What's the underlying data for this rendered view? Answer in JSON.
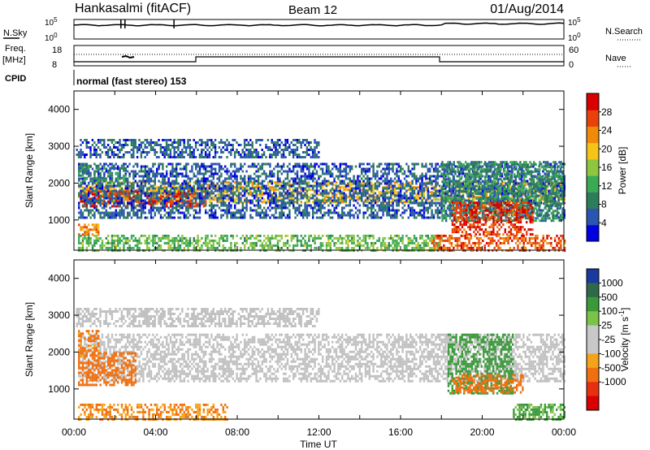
{
  "header": {
    "site": "Hankasalmi (fitACF)",
    "beam": "Beam 12",
    "date": "01/Aug/2014"
  },
  "status_panels": {
    "nsky_label": "N.Sky",
    "nsky_ticks": [
      "10^5",
      "10^0"
    ],
    "nsearch_label": "N.Search",
    "nsearch_ticks": [
      "10^5",
      "10^0"
    ],
    "freq_label": "Freq.",
    "freq_unit": "[MHz]",
    "freq_ticks": [
      18,
      8
    ],
    "nave_label": "Nave",
    "nave_ticks": [
      60,
      0
    ],
    "cpid_label": "CPID",
    "cpid_text": "normal (fast stereo) 153"
  },
  "colors": {
    "power_scale": [
      "#0000e0",
      "#2a55b0",
      "#2e7d5a",
      "#3aaa55",
      "#8ec63f",
      "#f4c518",
      "#f08a0a",
      "#e8420a",
      "#d80000"
    ],
    "velocity_scale": [
      "#1a3aa0",
      "#2e6a4a",
      "#3a9a3a",
      "#7ac24a",
      "#c8c8c8",
      "#c8c8c8",
      "#f4a31a",
      "#f07010",
      "#e83010",
      "#d80000"
    ],
    "ground_scatter": "#c0c0c0"
  },
  "chart_data": [
    {
      "type": "heatmap",
      "name": "power",
      "xlabel": "",
      "ylabel": "Slant Range [km]",
      "xlim_hours": [
        0,
        24
      ],
      "ylim_km": [
        180,
        4500
      ],
      "yticks": [
        1000,
        2000,
        3000,
        4000
      ],
      "colorbar_label": "Power [dB]",
      "colorbar_range": [
        0,
        32
      ],
      "colorbar_ticks": [
        4,
        8,
        12,
        16,
        20,
        24,
        28
      ],
      "bands": [
        {
          "t0": 0.2,
          "t1": 24,
          "r0": 1500,
          "r1": 2050,
          "value": 20
        },
        {
          "t0": 0.3,
          "t1": 6.5,
          "r0": 1350,
          "r1": 1800,
          "value": 28
        },
        {
          "t0": 0.2,
          "t1": 24,
          "r0": 1050,
          "r1": 2550,
          "value": 6
        },
        {
          "t0": 0.2,
          "t1": 2.5,
          "r0": 2000,
          "r1": 2500,
          "value": 9
        },
        {
          "t0": 18,
          "t1": 24,
          "r0": 1000,
          "r1": 2600,
          "value": 10
        },
        {
          "t0": 18.5,
          "t1": 22.5,
          "r0": 600,
          "r1": 1500,
          "value": 28
        },
        {
          "t0": 0.2,
          "t1": 1.2,
          "r0": 600,
          "r1": 900,
          "value": 24
        },
        {
          "t0": 0.2,
          "t1": 18,
          "r0": 180,
          "r1": 600,
          "value": 14
        },
        {
          "t0": 17.5,
          "t1": 24,
          "r0": 180,
          "r1": 600,
          "value": 26
        },
        {
          "t0": 0.1,
          "t1": 12,
          "r0": 2700,
          "r1": 3200,
          "value": 6
        }
      ]
    },
    {
      "type": "heatmap",
      "name": "velocity",
      "xlabel": "Time UT",
      "ylabel": "Slant Range [km]",
      "xlim_hours": [
        0,
        24
      ],
      "ylim_km": [
        180,
        4500
      ],
      "yticks": [
        1000,
        2000,
        3000,
        4000
      ],
      "xtick_labels": [
        "00:00",
        "04:00",
        "08:00",
        "12:00",
        "16:00",
        "20:00",
        "00:00"
      ],
      "colorbar_label": "Velocity [m s^-1]",
      "colorbar_ticks": [
        1000,
        500,
        100,
        25,
        -25,
        -100,
        -500,
        -1000
      ],
      "bands": [
        {
          "t0": 0.2,
          "t1": 24,
          "r0": 1200,
          "r1": 2500,
          "value": "ground"
        },
        {
          "t0": 0.2,
          "t1": 3.0,
          "r0": 1100,
          "r1": 2000,
          "value": -300
        },
        {
          "t0": 0.2,
          "t1": 1.2,
          "r0": 1900,
          "r1": 2600,
          "value": -150
        },
        {
          "t0": 0.1,
          "t1": 12,
          "r0": 2700,
          "r1": 3200,
          "value": "ground"
        },
        {
          "t0": 18.3,
          "t1": 21.5,
          "r0": 900,
          "r1": 2500,
          "value": 300
        },
        {
          "t0": 18.5,
          "t1": 22,
          "r0": 900,
          "r1": 1400,
          "value": -400
        },
        {
          "t0": 0.2,
          "t1": 7.5,
          "r0": 180,
          "r1": 600,
          "value": -100
        },
        {
          "t0": 21.5,
          "t1": 24,
          "r0": 180,
          "r1": 600,
          "value": 120
        }
      ]
    }
  ]
}
